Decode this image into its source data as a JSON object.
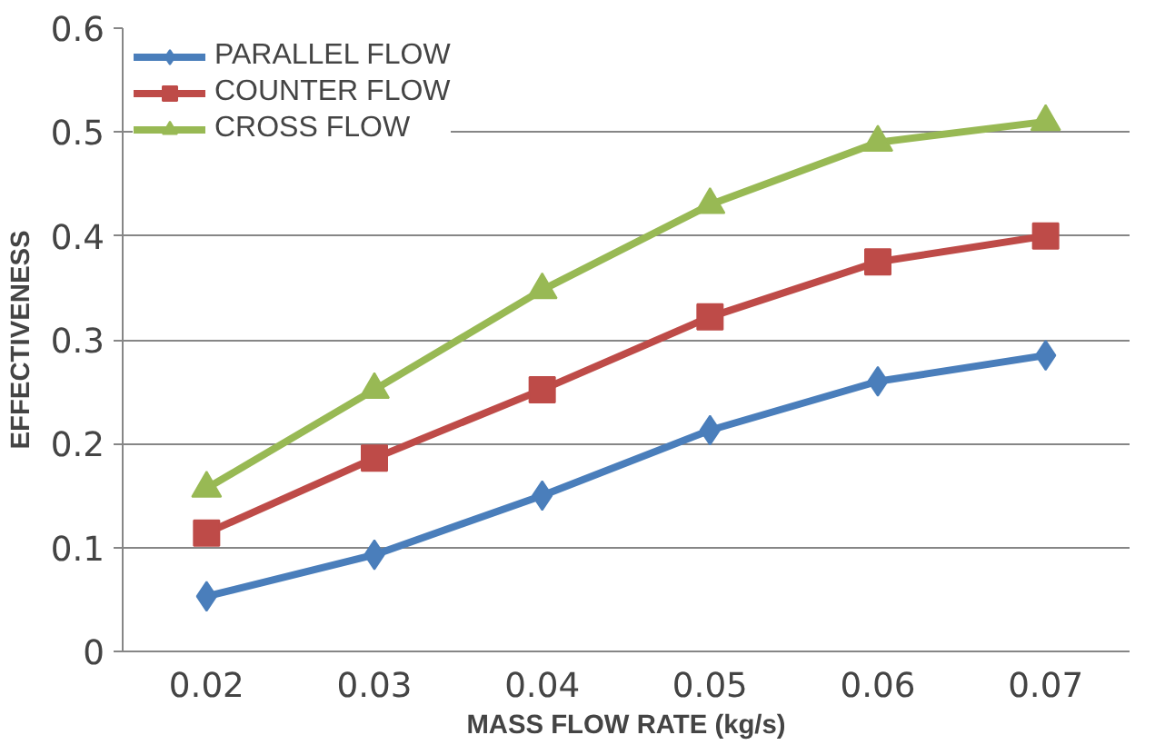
{
  "chart_data": {
    "type": "line",
    "xlabel": "MASS FLOW RATE (kg/s)",
    "ylabel": "EFFECTIVENESS",
    "categories": [
      "0.02",
      "0.03",
      "0.04",
      "0.05",
      "0.06",
      "0.07"
    ],
    "ylim": [
      0,
      0.6
    ],
    "yticks": [
      0,
      0.1,
      0.2,
      0.3,
      0.4,
      0.5,
      0.6
    ],
    "grid": "y",
    "legend": "top left",
    "series": [
      {
        "name": "PARALLEL FLOW",
        "color": "#4a7ebb",
        "marker": "diamond",
        "values": [
          0.053,
          0.093,
          0.15,
          0.213,
          0.26,
          0.285
        ]
      },
      {
        "name": "COUNTER FLOW",
        "color": "#be4b48",
        "marker": "square",
        "values": [
          0.114,
          0.186,
          0.252,
          0.322,
          0.375,
          0.4
        ]
      },
      {
        "name": "CROSS FLOW",
        "color": "#98b954",
        "marker": "triangle",
        "values": [
          0.157,
          0.252,
          0.348,
          0.43,
          0.49,
          0.51
        ]
      }
    ]
  }
}
